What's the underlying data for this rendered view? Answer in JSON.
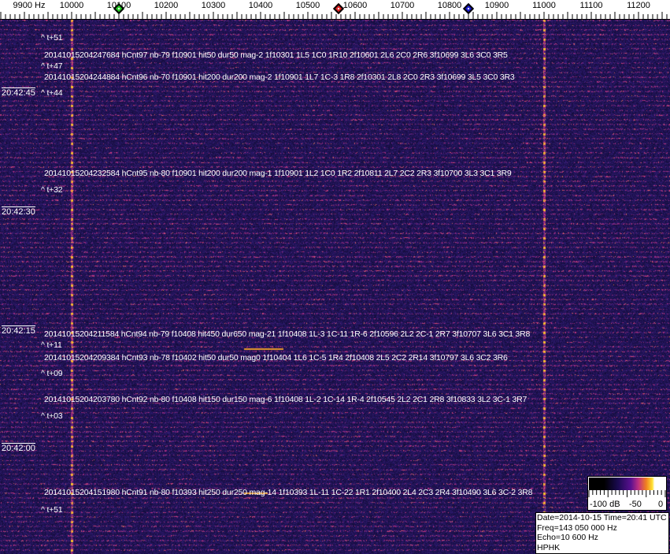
{
  "frequency_axis": {
    "labels": [
      "9900 Hz",
      "10000",
      "10100",
      "10200",
      "10300",
      "10400",
      "10500",
      "10600",
      "10700",
      "10800",
      "10900",
      "11000",
      "11100",
      "11200"
    ],
    "values": [
      9900,
      10000,
      10100,
      10200,
      10300,
      10400,
      10500,
      10600,
      10700,
      10800,
      10900,
      11000,
      11100,
      11200
    ]
  },
  "markers": [
    {
      "color": "#22cc22",
      "freq": 10100
    },
    {
      "color": "#dd2222",
      "freq": 10565
    },
    {
      "color": "#1a1acc",
      "freq": 10840
    }
  ],
  "time_labels": [
    "20:42:45",
    "20:42:30",
    "20:42:15",
    "20:42:00"
  ],
  "offsets": [
    "^ t+51",
    "^ t+47",
    "^ t+44",
    "^ t+32",
    "^ t+11",
    "^ t+09",
    "^ t+03",
    "^ t+51"
  ],
  "detections": [
    "20141015204247684 hCnt97 nb-79 f10901 hit50 dur50 mag-2 1f10301 1L5 1C0 1R10 2f10601 2L6 2C0 2R6 3f10699 3L6 3C0 3R5",
    "20141015204244884 hCnt96 nb-70 f10901 hit200 dur200 mag-2 1f10901 1L7 1C-3 1R8 2f10301 2L8 2C0 2R3 3f10699 3L5 3C0 3R3",
    "20141015204232584 hCnt95 nb-80 f10901 hit200 dur200 mag-1 1f10901 1L2 1C0 1R2 2f10811 2L7 2C2 2R3 3f10700 3L3 3C1 3R9",
    "20141015204211584 hCnt94 nb-79 f10408 hit450 dur650 mag-21 1f10408 1L-3 1C-11 1R-6 2f10596 2L2 2C-1 2R7 3f10707 3L6 3C1 3R8",
    "20141015204209384 hCnt93 nb-78 f10402 hit50 dur50 mag0 1f10404 1L6 1C-5 1R4 2f10408 2L5 2C2 2R14 3f10797 3L6 3C2 3R6",
    "20141015204203780 hCnt92 nb-80 f10408 hit150 dur150 mag-6 1f10408 1L-2 1C-14 1R-4 2f10545 2L2 2C1 2R8 3f10833 3L2 3C-1 3R7",
    "20141015204151980 hCnt91 nb-80 f10393 hit250 dur250 mag-14 1f10393 1L-11 1C-22 1R1 2f10400 2L4 2C3 2R4 3f10490 3L6 3C-2 3R8"
  ],
  "colorbar": {
    "labels": [
      "-100 dB",
      "-50",
      "0"
    ],
    "range_db": [
      -100,
      0
    ]
  },
  "info": {
    "datetime": "Date=2014-10-15 Time=20:41 UTC",
    "freq": "Freq=143 050 000 Hz",
    "echo": "Echo=10 600 Hz",
    "station": "HPHK"
  },
  "colors": {
    "background": "#1c1a6e",
    "carrier": "#ff9a30",
    "text": "#ffffff"
  }
}
